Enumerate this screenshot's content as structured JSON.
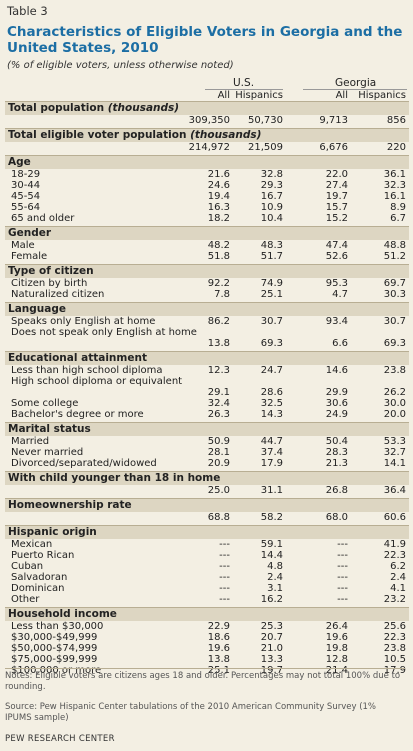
{
  "table_label": "Table 3",
  "title": "Characteristics of Eligible Voters in Georgia and the United States, 2010",
  "subtitle": "(% of eligible voters, unless otherwise noted)",
  "columns": {
    "groups": [
      "U.S.",
      "Georgia"
    ],
    "subheads": [
      "All",
      "Hispanics",
      "All",
      "Hispanics"
    ]
  },
  "sections": [
    {
      "title": "Total population",
      "title_note": "(thousands)",
      "rows": [
        {
          "label": "",
          "values": [
            "309,350",
            "50,730",
            "9,713",
            "856"
          ]
        }
      ]
    },
    {
      "title": "Total eligible voter population",
      "title_note": "(thousands)",
      "rows": [
        {
          "label": "",
          "values": [
            "214,972",
            "21,509",
            "6,676",
            "220"
          ]
        }
      ]
    },
    {
      "title": "Age",
      "rows": [
        {
          "label": "18-29",
          "values": [
            "21.6",
            "32.8",
            "22.0",
            "36.1"
          ]
        },
        {
          "label": "30-44",
          "values": [
            "24.6",
            "29.3",
            "27.4",
            "32.3"
          ]
        },
        {
          "label": "45-54",
          "values": [
            "19.4",
            "16.7",
            "19.7",
            "16.1"
          ]
        },
        {
          "label": "55-64",
          "values": [
            "16.3",
            "10.9",
            "15.7",
            "8.9"
          ]
        },
        {
          "label": "65 and older",
          "values": [
            "18.2",
            "10.4",
            "15.2",
            "6.7"
          ]
        }
      ]
    },
    {
      "title": "Gender",
      "rows": [
        {
          "label": "Male",
          "values": [
            "48.2",
            "48.3",
            "47.4",
            "48.8"
          ]
        },
        {
          "label": "Female",
          "values": [
            "51.8",
            "51.7",
            "52.6",
            "51.2"
          ]
        }
      ]
    },
    {
      "title": "Type of citizen",
      "rows": [
        {
          "label": "Citizen by birth",
          "values": [
            "92.2",
            "74.9",
            "95.3",
            "69.7"
          ]
        },
        {
          "label": "Naturalized citizen",
          "values": [
            "7.8",
            "25.1",
            "4.7",
            "30.3"
          ]
        }
      ]
    },
    {
      "title": "Language",
      "rows": [
        {
          "label": "Speaks only English at home",
          "values": [
            "86.2",
            "30.7",
            "93.4",
            "30.7"
          ]
        },
        {
          "label": "Does not speak only English at home",
          "values": [
            "13.8",
            "69.3",
            "6.6",
            "69.3"
          ]
        }
      ]
    },
    {
      "title": "Educational attainment",
      "rows": [
        {
          "label": "Less than high school diploma",
          "values": [
            "12.3",
            "24.7",
            "14.6",
            "23.8"
          ]
        },
        {
          "label": "High school diploma or equivalent",
          "values": [
            "29.1",
            "28.6",
            "29.9",
            "26.2"
          ]
        },
        {
          "label": "Some college",
          "values": [
            "32.4",
            "32.5",
            "30.6",
            "30.0"
          ]
        },
        {
          "label": "Bachelor's degree or more",
          "values": [
            "26.3",
            "14.3",
            "24.9",
            "20.0"
          ]
        }
      ]
    },
    {
      "title": "Marital status",
      "rows": [
        {
          "label": "Married",
          "values": [
            "50.9",
            "44.7",
            "50.4",
            "53.3"
          ]
        },
        {
          "label": "Never married",
          "values": [
            "28.1",
            "37.4",
            "28.3",
            "32.7"
          ]
        },
        {
          "label": "Divorced/separated/widowed",
          "values": [
            "20.9",
            "17.9",
            "21.3",
            "14.1"
          ]
        }
      ]
    },
    {
      "title": "With child younger than 18 in home",
      "rows": [
        {
          "label": "",
          "values": [
            "25.0",
            "31.1",
            "26.8",
            "36.4"
          ]
        }
      ]
    },
    {
      "title": "Homeownership rate",
      "rows": [
        {
          "label": "",
          "values": [
            "68.8",
            "58.2",
            "68.0",
            "60.6"
          ]
        }
      ]
    },
    {
      "title": "Hispanic origin",
      "rows": [
        {
          "label": "Mexican",
          "values": [
            "---",
            "59.1",
            "---",
            "41.9"
          ]
        },
        {
          "label": "Puerto Rican",
          "values": [
            "---",
            "14.4",
            "---",
            "22.3"
          ]
        },
        {
          "label": "Cuban",
          "values": [
            "---",
            "4.8",
            "---",
            "6.2"
          ]
        },
        {
          "label": "Salvadoran",
          "values": [
            "---",
            "2.4",
            "---",
            "2.4"
          ]
        },
        {
          "label": "Dominican",
          "values": [
            "---",
            "3.1",
            "---",
            "4.1"
          ]
        },
        {
          "label": "Other",
          "values": [
            "---",
            "16.2",
            "---",
            "23.2"
          ]
        }
      ]
    },
    {
      "title": "Household income",
      "rows": [
        {
          "label": "Less than $30,000",
          "values": [
            "22.9",
            "25.3",
            "26.4",
            "25.6"
          ]
        },
        {
          "label": "$30,000-$49,999",
          "values": [
            "18.6",
            "20.7",
            "19.6",
            "22.3"
          ]
        },
        {
          "label": "$50,000-$74,999",
          "values": [
            "19.6",
            "21.0",
            "19.8",
            "23.8"
          ]
        },
        {
          "label": "$75,000-$99,999",
          "values": [
            "13.8",
            "13.3",
            "12.8",
            "10.5"
          ]
        },
        {
          "label": "$100,000 or more",
          "values": [
            "25.1",
            "19.7",
            "21.4",
            "17.9"
          ]
        }
      ]
    }
  ],
  "notes": "Notes: Eligible voters are citizens ages 18 and older. Percentages may not total 100% due to rounding.",
  "source": "Source: Pew Hispanic Center tabulations of the 2010 American Community Survey (1% IPUMS sample)",
  "footer": "PEW RESEARCH CENTER"
}
